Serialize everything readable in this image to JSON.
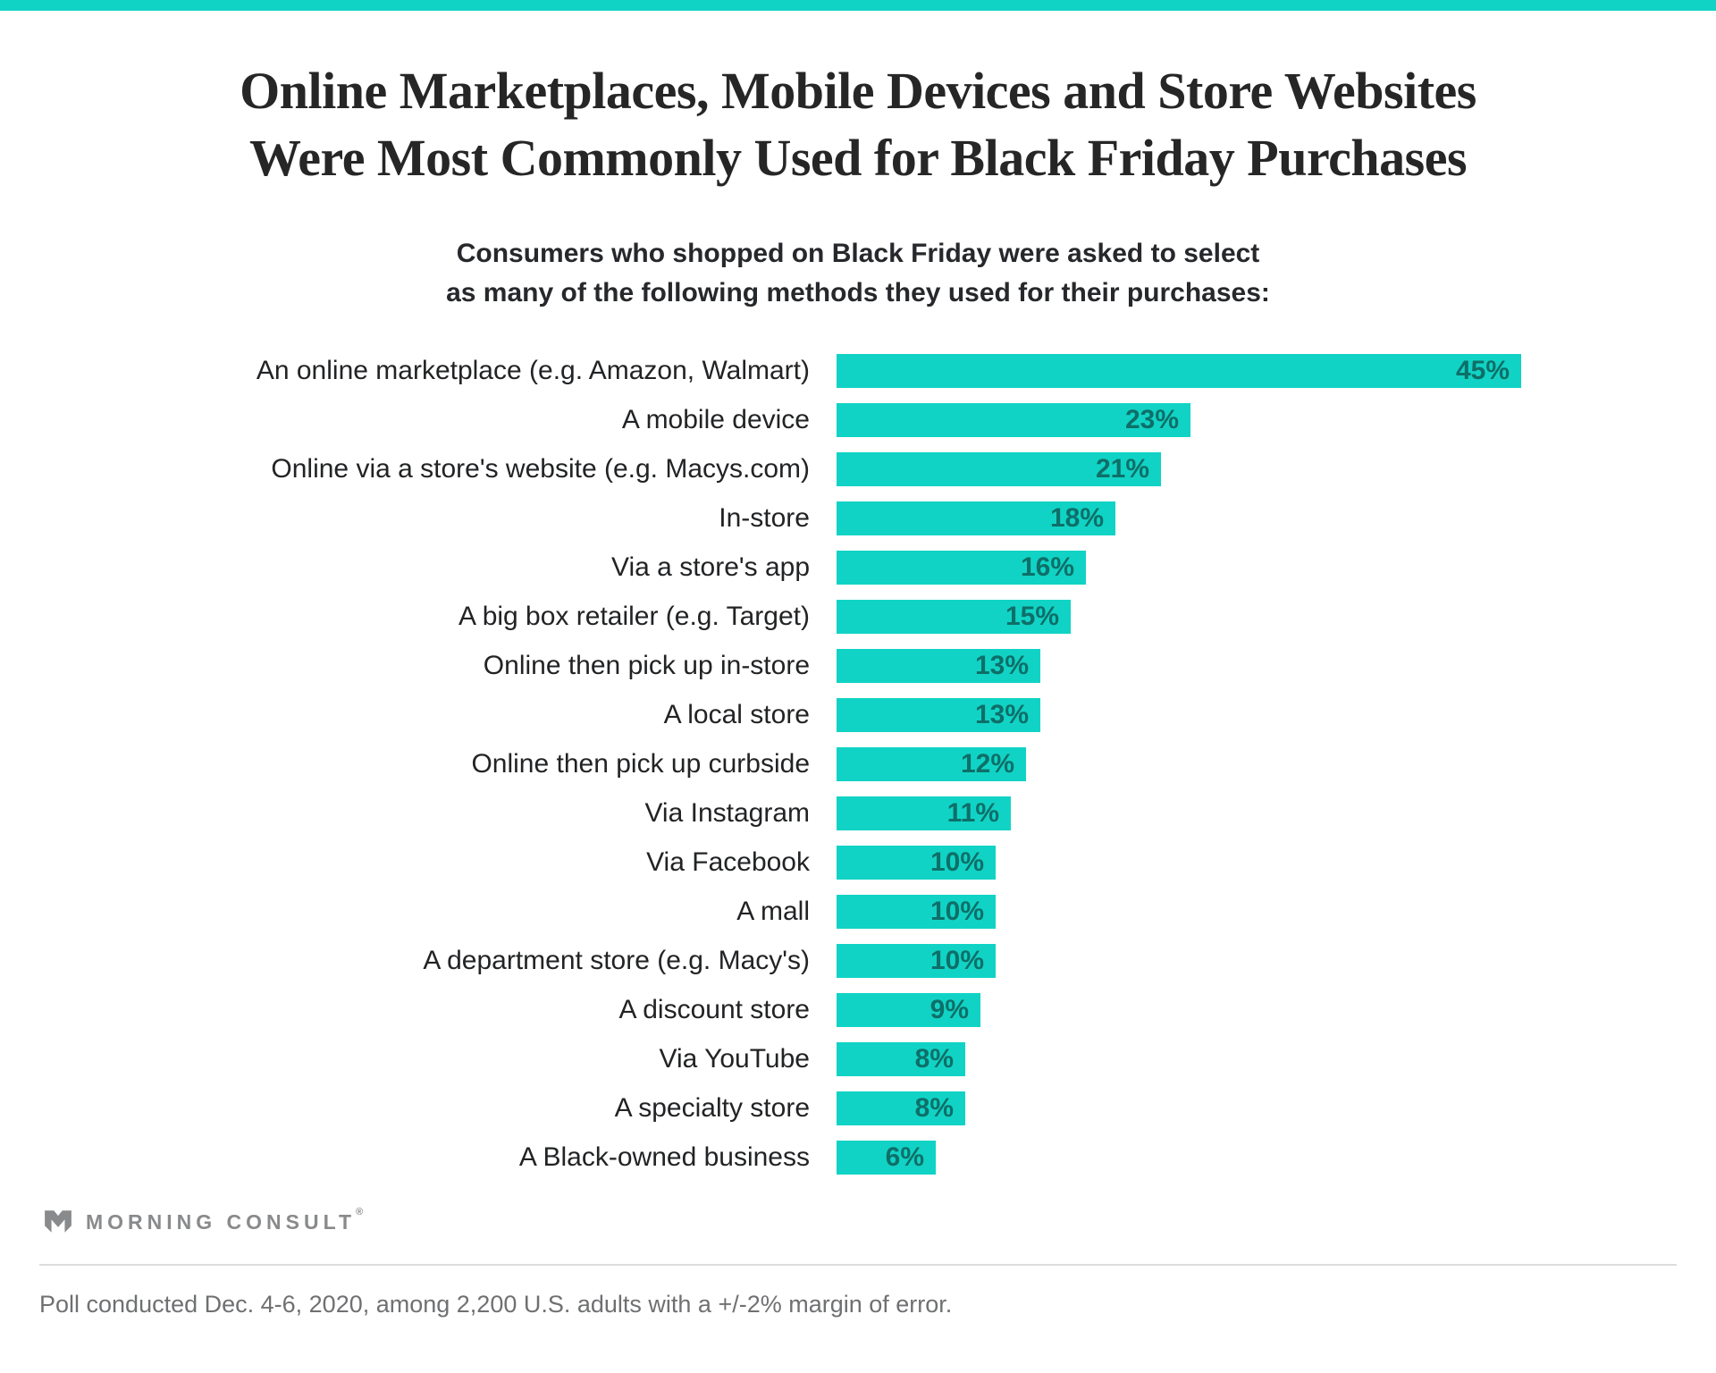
{
  "accent_color": "#11D3C5",
  "header": {
    "title_line1": "Online Marketplaces, Mobile Devices and Store Websites",
    "title_line2": "Were Most Commonly Used for Black Friday Purchases",
    "subtitle_line1": "Consumers who shopped on Black Friday were asked to select",
    "subtitle_line2": "as many of the following methods they used for their purchases:"
  },
  "chart_data": {
    "type": "bar",
    "orientation": "horizontal",
    "title": "Methods used for Black Friday purchases",
    "categories": [
      "An online marketplace (e.g. Amazon, Walmart)",
      "A mobile device",
      "Online via a store's website (e.g. Macys.com)",
      "In-store",
      "Via a store's app",
      "A big box retailer (e.g. Target)",
      "Online then pick up in-store",
      "A local store",
      "Online then pick up curbside",
      "Via Instagram",
      "Via Facebook",
      "A mall",
      "A department store (e.g. Macy's)",
      "A discount store",
      "Via YouTube",
      "A specialty store",
      "A Black-owned business"
    ],
    "values": [
      45,
      23,
      21,
      18,
      16,
      15,
      13,
      13,
      12,
      11,
      10,
      10,
      10,
      9,
      8,
      8,
      6
    ],
    "value_suffix": "%",
    "xlim": [
      0,
      47
    ],
    "grid": false,
    "legend": false,
    "bar_color": "#11D3C5",
    "value_label_color": "#0E6F68",
    "value_label_position": "inside-end"
  },
  "footer": {
    "logo_text": "MORNING CONSULT",
    "logo_mark": "®",
    "note": "Poll conducted Dec. 4-6, 2020, among 2,200 U.S. adults with a +/-2% margin of error."
  }
}
